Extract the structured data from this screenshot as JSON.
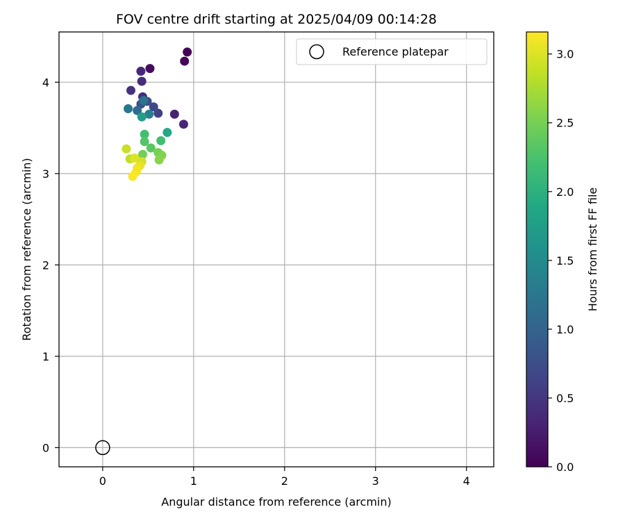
{
  "chart_data": {
    "type": "scatter",
    "title": "FOV centre drift starting at 2025/04/09 00:14:28",
    "xlabel": "Angular distance from reference (arcmin)",
    "ylabel": "Rotation from reference (arcmin)",
    "xlim": [
      -0.48,
      4.3
    ],
    "ylim": [
      -0.21,
      4.55
    ],
    "xticks": [
      0,
      1,
      2,
      3,
      4
    ],
    "yticks": [
      0,
      1,
      2,
      3,
      4
    ],
    "grid": true,
    "legend": {
      "position": "top-right",
      "entries": [
        "Reference platepar"
      ]
    },
    "reference_point": {
      "x": 0,
      "y": 0,
      "label": "Reference platepar"
    },
    "colorbar": {
      "label": "Hours from first FF file",
      "colormap": "viridis",
      "range": [
        0.0,
        3.16
      ],
      "ticks": [
        0.0,
        0.5,
        1.0,
        1.5,
        2.0,
        2.5,
        3.0
      ],
      "tick_labels": [
        "0.0",
        "0.5",
        "1.0",
        "1.5",
        "2.0",
        "2.5",
        "3.0"
      ]
    },
    "series": [
      {
        "points": [
          {
            "x": 0.93,
            "y": 4.33,
            "hours": 0.02
          },
          {
            "x": 0.9,
            "y": 4.23,
            "hours": 0.05
          },
          {
            "x": 0.52,
            "y": 4.15,
            "hours": 0.1
          },
          {
            "x": 0.42,
            "y": 4.12,
            "hours": 0.35
          },
          {
            "x": 0.43,
            "y": 4.01,
            "hours": 0.4
          },
          {
            "x": 0.31,
            "y": 3.91,
            "hours": 0.45
          },
          {
            "x": 0.44,
            "y": 3.84,
            "hours": 0.4
          },
          {
            "x": 0.79,
            "y": 3.65,
            "hours": 0.3
          },
          {
            "x": 0.89,
            "y": 3.54,
            "hours": 0.35
          },
          {
            "x": 0.61,
            "y": 3.66,
            "hours": 0.6
          },
          {
            "x": 0.56,
            "y": 3.73,
            "hours": 0.7
          },
          {
            "x": 0.49,
            "y": 3.79,
            "hours": 0.75
          },
          {
            "x": 0.42,
            "y": 3.76,
            "hours": 0.8
          },
          {
            "x": 0.45,
            "y": 3.8,
            "hours": 1.2
          },
          {
            "x": 0.38,
            "y": 3.69,
            "hours": 1.1
          },
          {
            "x": 0.28,
            "y": 3.71,
            "hours": 1.25
          },
          {
            "x": 0.51,
            "y": 3.65,
            "hours": 1.35
          },
          {
            "x": 0.43,
            "y": 3.62,
            "hours": 1.75
          },
          {
            "x": 0.71,
            "y": 3.45,
            "hours": 1.9
          },
          {
            "x": 0.46,
            "y": 3.43,
            "hours": 2.2
          },
          {
            "x": 0.64,
            "y": 3.36,
            "hours": 2.2
          },
          {
            "x": 0.46,
            "y": 3.35,
            "hours": 2.3
          },
          {
            "x": 0.53,
            "y": 3.28,
            "hours": 2.35
          },
          {
            "x": 0.61,
            "y": 3.23,
            "hours": 2.5
          },
          {
            "x": 0.65,
            "y": 3.2,
            "hours": 2.55
          },
          {
            "x": 0.44,
            "y": 3.21,
            "hours": 2.5
          },
          {
            "x": 0.62,
            "y": 3.15,
            "hours": 2.6
          },
          {
            "x": 0.26,
            "y": 3.27,
            "hours": 2.9
          },
          {
            "x": 0.3,
            "y": 3.16,
            "hours": 2.85
          },
          {
            "x": 0.35,
            "y": 3.17,
            "hours": 3.0
          },
          {
            "x": 0.43,
            "y": 3.13,
            "hours": 2.95
          },
          {
            "x": 0.41,
            "y": 3.09,
            "hours": 3.05
          },
          {
            "x": 0.38,
            "y": 3.06,
            "hours": 3.1
          },
          {
            "x": 0.37,
            "y": 3.02,
            "hours": 3.12
          },
          {
            "x": 0.33,
            "y": 2.97,
            "hours": 3.15
          }
        ]
      }
    ]
  }
}
